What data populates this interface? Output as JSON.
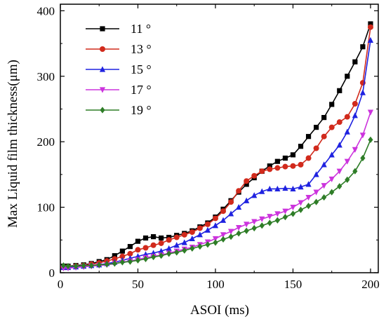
{
  "chart_data": {
    "type": "line",
    "xlabel": "ASOI (ms)",
    "ylabel": "Max Liquid film thickness(μm)",
    "xlim": [
      0,
      205
    ],
    "ylim": [
      0,
      410
    ],
    "xticks": [
      0,
      50,
      100,
      150,
      200
    ],
    "yticks": [
      0,
      100,
      200,
      300,
      400
    ],
    "grid": false,
    "legend_position": "top-left",
    "series": [
      {
        "name": "11 °",
        "color": "#000000",
        "marker": "square",
        "points": [
          [
            2,
            10
          ],
          [
            5,
            10
          ],
          [
            10,
            11
          ],
          [
            15,
            12
          ],
          [
            20,
            14
          ],
          [
            25,
            17
          ],
          [
            30,
            20
          ],
          [
            35,
            26
          ],
          [
            40,
            33
          ],
          [
            45,
            40
          ],
          [
            50,
            48
          ],
          [
            55,
            53
          ],
          [
            60,
            55
          ],
          [
            65,
            53
          ],
          [
            70,
            54
          ],
          [
            75,
            57
          ],
          [
            80,
            60
          ],
          [
            85,
            64
          ],
          [
            90,
            70
          ],
          [
            95,
            76
          ],
          [
            100,
            85
          ],
          [
            105,
            97
          ],
          [
            110,
            110
          ],
          [
            115,
            123
          ],
          [
            120,
            135
          ],
          [
            125,
            145
          ],
          [
            130,
            155
          ],
          [
            135,
            163
          ],
          [
            140,
            170
          ],
          [
            145,
            175
          ],
          [
            150,
            180
          ],
          [
            155,
            193
          ],
          [
            160,
            208
          ],
          [
            165,
            222
          ],
          [
            170,
            237
          ],
          [
            175,
            257
          ],
          [
            180,
            278
          ],
          [
            185,
            300
          ],
          [
            190,
            322
          ],
          [
            195,
            345
          ],
          [
            200,
            380
          ]
        ]
      },
      {
        "name": "13 °",
        "color": "#d12a1c",
        "marker": "circle",
        "points": [
          [
            2,
            9
          ],
          [
            5,
            9
          ],
          [
            10,
            10
          ],
          [
            15,
            11
          ],
          [
            20,
            13
          ],
          [
            25,
            15
          ],
          [
            30,
            18
          ],
          [
            35,
            21
          ],
          [
            40,
            25
          ],
          [
            45,
            29
          ],
          [
            50,
            35
          ],
          [
            55,
            38
          ],
          [
            60,
            42
          ],
          [
            65,
            45
          ],
          [
            70,
            50
          ],
          [
            75,
            54
          ],
          [
            80,
            58
          ],
          [
            85,
            62
          ],
          [
            90,
            68
          ],
          [
            95,
            74
          ],
          [
            100,
            83
          ],
          [
            105,
            94
          ],
          [
            110,
            108
          ],
          [
            115,
            125
          ],
          [
            120,
            140
          ],
          [
            125,
            148
          ],
          [
            130,
            155
          ],
          [
            135,
            158
          ],
          [
            140,
            160
          ],
          [
            145,
            162
          ],
          [
            150,
            163
          ],
          [
            155,
            165
          ],
          [
            160,
            175
          ],
          [
            165,
            190
          ],
          [
            170,
            208
          ],
          [
            175,
            222
          ],
          [
            180,
            230
          ],
          [
            185,
            238
          ],
          [
            190,
            258
          ],
          [
            195,
            290
          ],
          [
            200,
            375
          ]
        ]
      },
      {
        "name": "15 °",
        "color": "#1f22e0",
        "marker": "triangle-up",
        "points": [
          [
            2,
            8
          ],
          [
            5,
            8
          ],
          [
            10,
            9
          ],
          [
            15,
            10
          ],
          [
            20,
            11
          ],
          [
            25,
            12
          ],
          [
            30,
            14
          ],
          [
            35,
            16
          ],
          [
            40,
            19
          ],
          [
            45,
            22
          ],
          [
            50,
            25
          ],
          [
            55,
            28
          ],
          [
            60,
            30
          ],
          [
            65,
            33
          ],
          [
            70,
            37
          ],
          [
            75,
            42
          ],
          [
            80,
            46
          ],
          [
            85,
            52
          ],
          [
            90,
            58
          ],
          [
            95,
            65
          ],
          [
            100,
            72
          ],
          [
            105,
            80
          ],
          [
            110,
            90
          ],
          [
            115,
            100
          ],
          [
            120,
            110
          ],
          [
            125,
            118
          ],
          [
            130,
            124
          ],
          [
            135,
            128
          ],
          [
            140,
            128
          ],
          [
            145,
            129
          ],
          [
            150,
            128
          ],
          [
            155,
            131
          ],
          [
            160,
            135
          ],
          [
            165,
            150
          ],
          [
            170,
            165
          ],
          [
            175,
            180
          ],
          [
            180,
            195
          ],
          [
            185,
            215
          ],
          [
            190,
            240
          ],
          [
            195,
            275
          ],
          [
            200,
            355
          ]
        ]
      },
      {
        "name": "17 °",
        "color": "#cc33dd",
        "marker": "triangle-down",
        "points": [
          [
            2,
            7
          ],
          [
            5,
            7
          ],
          [
            10,
            8
          ],
          [
            15,
            9
          ],
          [
            20,
            10
          ],
          [
            25,
            11
          ],
          [
            30,
            12
          ],
          [
            35,
            14
          ],
          [
            40,
            16
          ],
          [
            45,
            18
          ],
          [
            50,
            20
          ],
          [
            55,
            23
          ],
          [
            60,
            25
          ],
          [
            65,
            27
          ],
          [
            70,
            30
          ],
          [
            75,
            33
          ],
          [
            80,
            36
          ],
          [
            85,
            39
          ],
          [
            90,
            43
          ],
          [
            95,
            47
          ],
          [
            100,
            52
          ],
          [
            105,
            58
          ],
          [
            110,
            63
          ],
          [
            115,
            69
          ],
          [
            120,
            74
          ],
          [
            125,
            78
          ],
          [
            130,
            82
          ],
          [
            135,
            86
          ],
          [
            140,
            90
          ],
          [
            145,
            94
          ],
          [
            150,
            100
          ],
          [
            155,
            107
          ],
          [
            160,
            115
          ],
          [
            165,
            123
          ],
          [
            170,
            133
          ],
          [
            175,
            143
          ],
          [
            180,
            155
          ],
          [
            185,
            170
          ],
          [
            190,
            188
          ],
          [
            195,
            210
          ],
          [
            200,
            245
          ]
        ]
      },
      {
        "name": "19 °",
        "color": "#2e7d27",
        "marker": "diamond",
        "points": [
          [
            2,
            11
          ],
          [
            5,
            10
          ],
          [
            10,
            10
          ],
          [
            15,
            11
          ],
          [
            20,
            11
          ],
          [
            25,
            12
          ],
          [
            30,
            13
          ],
          [
            35,
            14
          ],
          [
            40,
            16
          ],
          [
            45,
            17
          ],
          [
            50,
            19
          ],
          [
            55,
            21
          ],
          [
            60,
            24
          ],
          [
            65,
            26
          ],
          [
            70,
            29
          ],
          [
            75,
            31
          ],
          [
            80,
            34
          ],
          [
            85,
            37
          ],
          [
            90,
            40
          ],
          [
            95,
            43
          ],
          [
            100,
            46
          ],
          [
            105,
            51
          ],
          [
            110,
            55
          ],
          [
            115,
            60
          ],
          [
            120,
            64
          ],
          [
            125,
            68
          ],
          [
            130,
            72
          ],
          [
            135,
            76
          ],
          [
            140,
            80
          ],
          [
            145,
            85
          ],
          [
            150,
            90
          ],
          [
            155,
            96
          ],
          [
            160,
            102
          ],
          [
            165,
            108
          ],
          [
            170,
            115
          ],
          [
            175,
            123
          ],
          [
            180,
            132
          ],
          [
            185,
            142
          ],
          [
            190,
            155
          ],
          [
            195,
            175
          ],
          [
            200,
            203
          ]
        ]
      }
    ]
  }
}
